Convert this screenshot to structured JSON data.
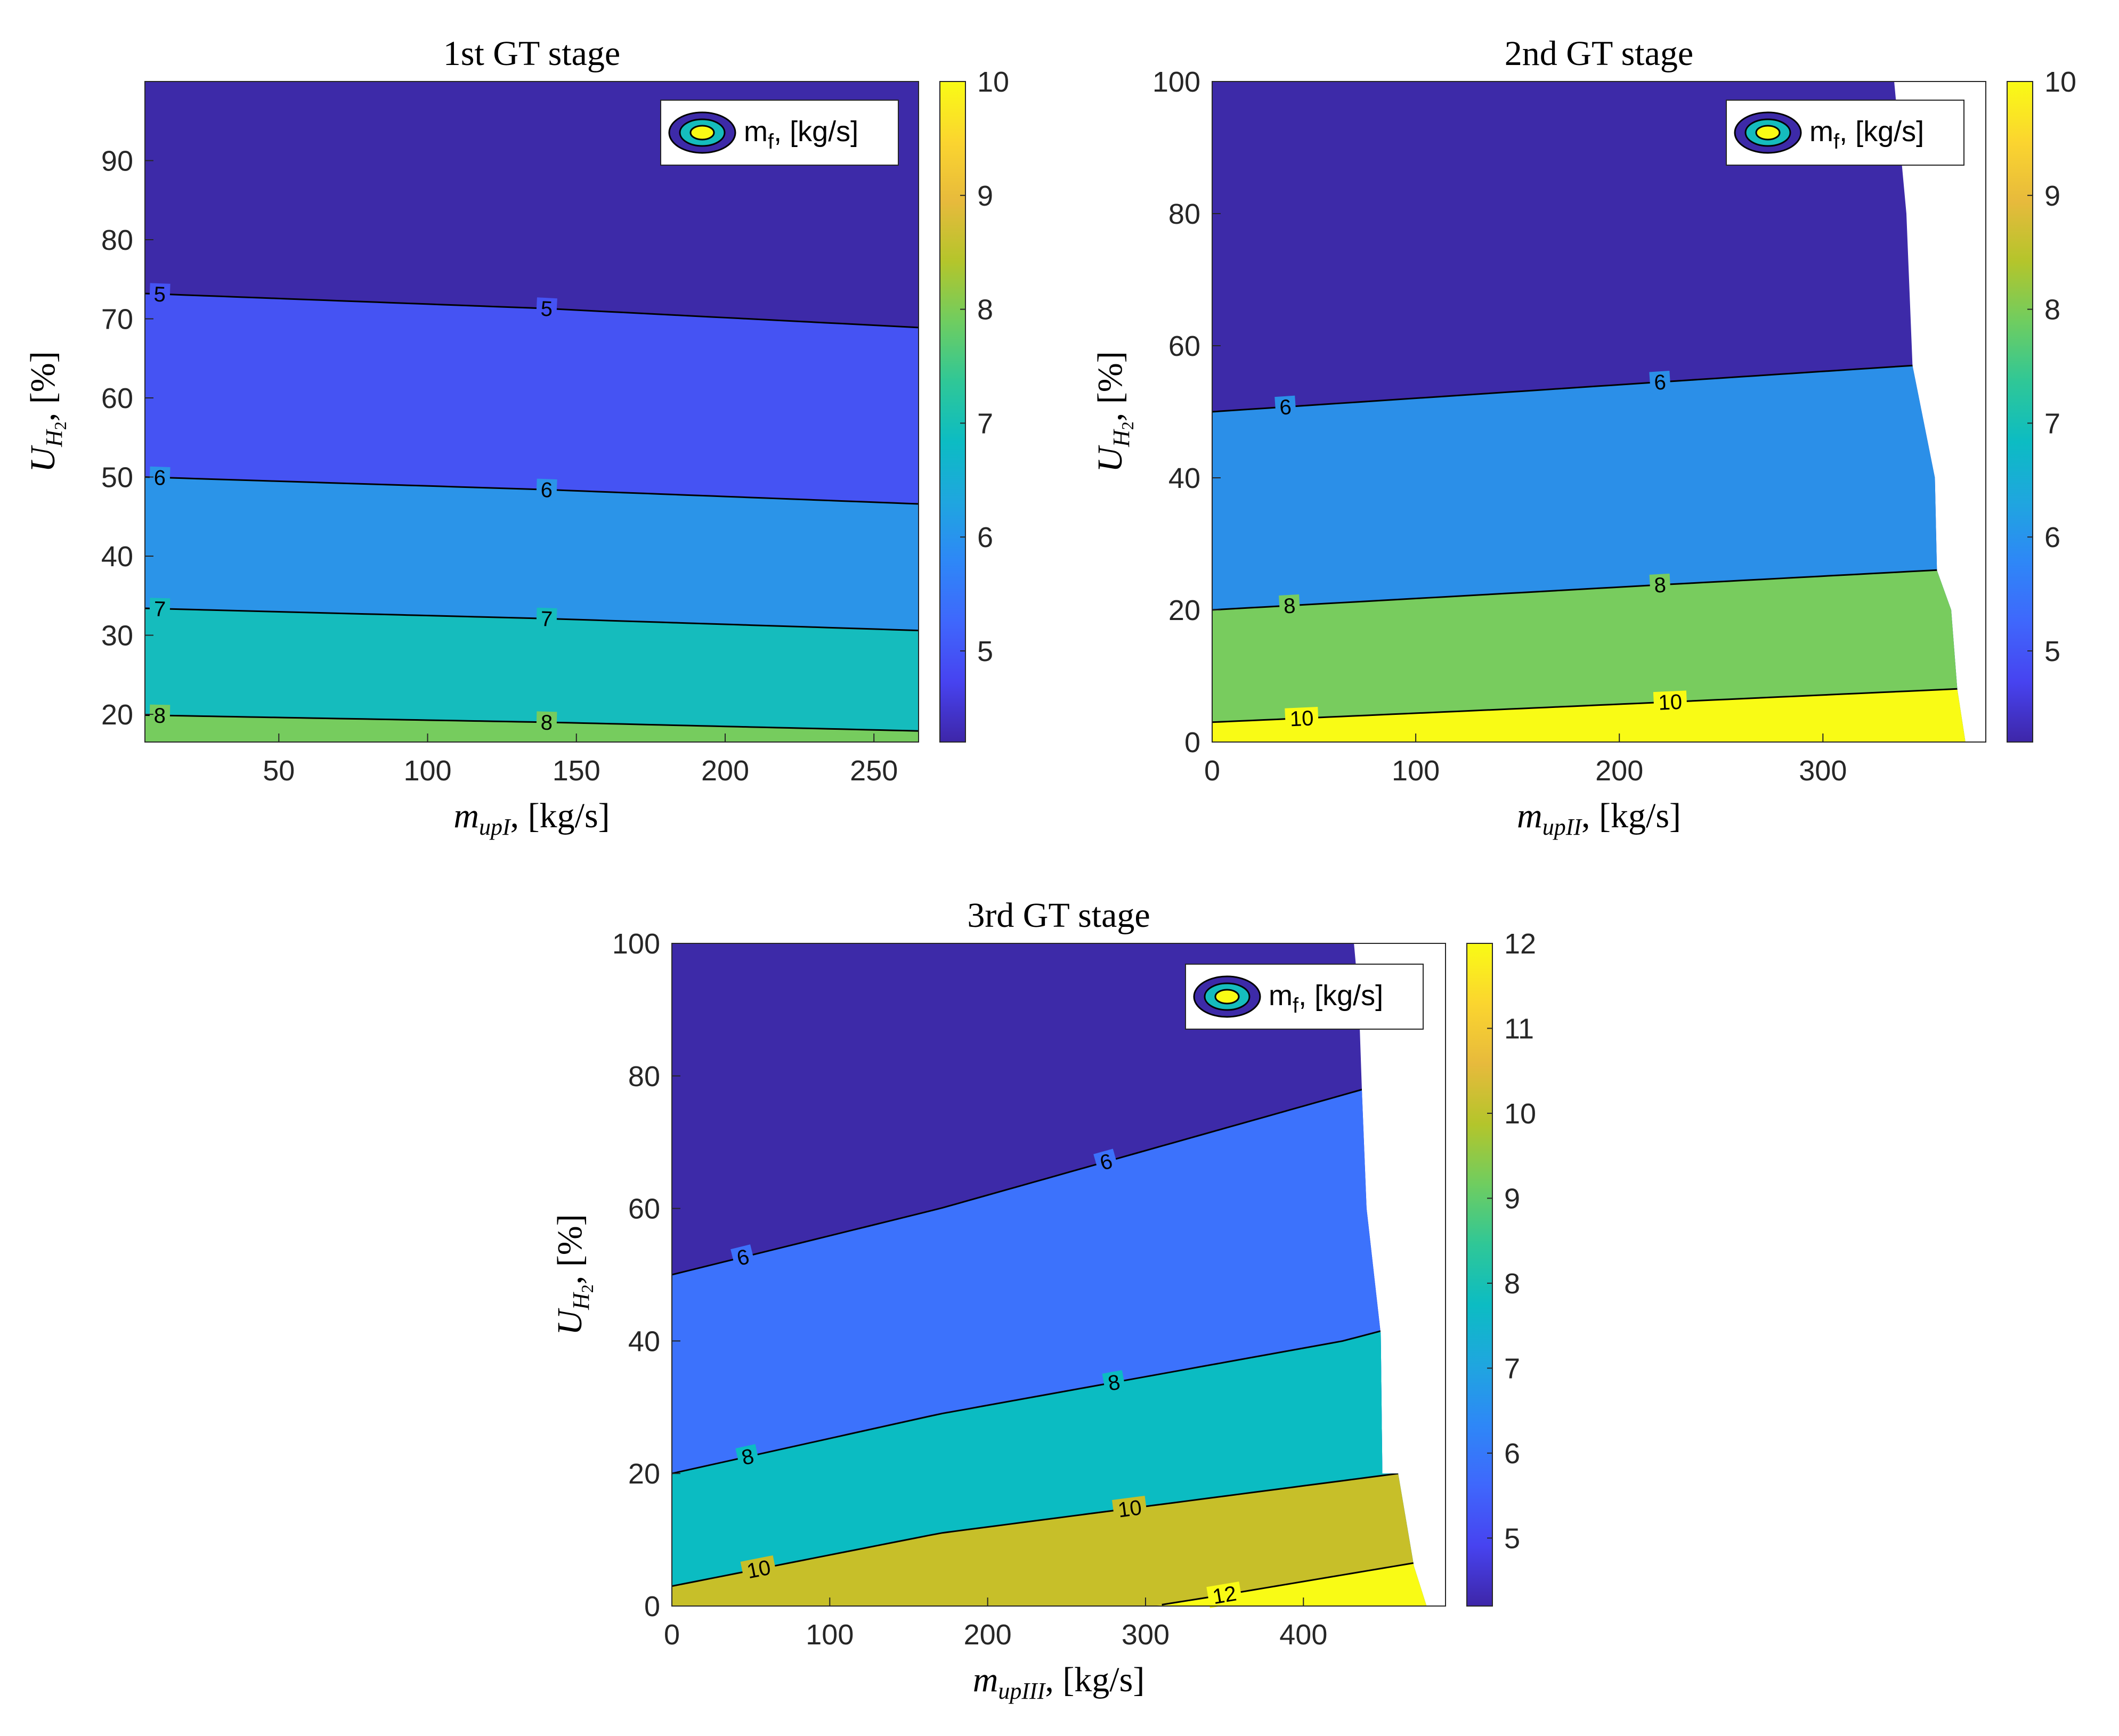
{
  "chart_data": [
    {
      "type": "contour",
      "title": "1st GT stage",
      "xlabel": "m_upI, [kg/s]",
      "xlabel_main": "m",
      "xlabel_sub": "upI",
      "xlabel_unit": ", [kg/s]",
      "ylabel_main": "U",
      "ylabel_sub": "H",
      "ylabel_subsub": "2",
      "ylabel_unit": ", [%]",
      "xlim": [
        5,
        265
      ],
      "ylim": [
        16.5,
        100
      ],
      "xticks": [
        50,
        100,
        150,
        200,
        250
      ],
      "yticks": [
        20,
        30,
        40,
        50,
        60,
        70,
        80,
        90
      ],
      "legend": "m_f, [kg/s]",
      "legend_main": "m",
      "legend_sub": "f",
      "legend_unit": ", [kg/s]",
      "colorbar": {
        "range": [
          4.2,
          10
        ],
        "ticks": [
          5,
          6,
          7,
          8,
          9,
          10
        ]
      },
      "x_extent": [
        [
          16.5,
          265
        ],
        [
          100,
          265
        ]
      ],
      "bands": [
        {
          "level": 4.5,
          "color": "#3d2aa8"
        },
        {
          "level": 5.4,
          "color": "#4553f3"
        },
        {
          "level": 6.3,
          "color": "#2b94e8"
        },
        {
          "level": 7.0,
          "color": "#15bcbd"
        },
        {
          "level": 8.0,
          "color": "#76cc5e"
        }
      ],
      "contours": [
        {
          "label": "5",
          "band": 1,
          "points": [
            [
              5,
              73.2
            ],
            [
              140,
              71.3
            ],
            [
              265,
              68.9
            ]
          ],
          "label_x": [
            10,
            140
          ]
        },
        {
          "label": "6",
          "band": 2,
          "points": [
            [
              5,
              50.0
            ],
            [
              140,
              48.4
            ],
            [
              265,
              46.6
            ]
          ],
          "label_x": [
            10,
            140
          ]
        },
        {
          "label": "7",
          "band": 3,
          "points": [
            [
              5,
              33.4
            ],
            [
              140,
              32.1
            ],
            [
              265,
              30.6
            ]
          ],
          "label_x": [
            10,
            140
          ]
        },
        {
          "label": "8",
          "band": 4,
          "points": [
            [
              5,
              19.9
            ],
            [
              140,
              19.0
            ],
            [
              265,
              17.9
            ]
          ],
          "label_x": [
            10,
            140
          ]
        }
      ]
    },
    {
      "type": "contour",
      "title": "2nd GT stage",
      "xlabel": "m_upII, [kg/s]",
      "xlabel_main": "m",
      "xlabel_sub": "upII",
      "xlabel_unit": ", [kg/s]",
      "ylabel_main": "U",
      "ylabel_sub": "H",
      "ylabel_subsub": "2",
      "ylabel_unit": ", [%]",
      "xlim": [
        0,
        380
      ],
      "ylim": [
        0,
        100
      ],
      "xticks": [
        0,
        100,
        200,
        300
      ],
      "yticks": [
        0,
        20,
        40,
        60,
        80,
        100
      ],
      "legend": "m_f, [kg/s]",
      "legend_main": "m",
      "legend_sub": "f",
      "legend_unit": ", [kg/s]",
      "colorbar": {
        "range": [
          4.2,
          10
        ],
        "ticks": [
          5,
          6,
          7,
          8,
          9,
          10
        ]
      },
      "x_extent": [
        [
          0,
          370
        ],
        [
          8,
          366
        ],
        [
          20,
          363
        ],
        [
          26,
          356
        ],
        [
          40,
          355
        ],
        [
          57,
          344
        ],
        [
          80,
          341
        ],
        [
          100,
          335
        ]
      ],
      "bands": [
        {
          "level": 4.5,
          "color": "#3d2aa8"
        },
        {
          "level": 6.3,
          "color": "#2b8fe8"
        },
        {
          "level": 7.8,
          "color": "#78cc5e"
        },
        {
          "level": 10.0,
          "color": "#f9fb15"
        }
      ],
      "contours": [
        {
          "label": "6",
          "band": 1,
          "points": [
            [
              0,
              50.0
            ],
            [
              220,
              54.5
            ],
            [
              344,
              57.0
            ]
          ],
          "label_x": [
            36,
            220
          ]
        },
        {
          "label": "8",
          "band": 2,
          "points": [
            [
              0,
              20.0
            ],
            [
              220,
              23.8
            ],
            [
              354,
              26.0
            ]
          ],
          "label_x": [
            38,
            220
          ]
        },
        {
          "label": "10",
          "band": 3,
          "points": [
            [
              0,
              3.0
            ],
            [
              220,
              6.0
            ],
            [
              363,
              8.0
            ]
          ],
          "label_x": [
            44,
            225
          ]
        }
      ]
    },
    {
      "type": "contour",
      "title": "3rd GT stage",
      "xlabel": "m_upIII, [kg/s]",
      "xlabel_main": "m",
      "xlabel_sub": "upIII",
      "xlabel_unit": ", [kg/s]",
      "ylabel_main": "U",
      "ylabel_sub": "H",
      "ylabel_subsub": "2",
      "ylabel_unit": ", [%]",
      "xlim": [
        0,
        490
      ],
      "ylim": [
        0,
        100
      ],
      "xticks": [
        0,
        100,
        200,
        300,
        400
      ],
      "yticks": [
        0,
        20,
        40,
        60,
        80,
        100
      ],
      "legend": "m_f, [kg/s]",
      "legend_main": "m",
      "legend_sub": "f",
      "legend_unit": ", [kg/s]",
      "colorbar": {
        "range": [
          4.2,
          12
        ],
        "ticks": [
          5,
          6,
          7,
          8,
          9,
          10,
          11,
          12
        ]
      },
      "x_extent": [
        [
          0,
          478
        ],
        [
          6,
          470
        ],
        [
          20,
          460
        ],
        [
          20,
          450
        ],
        [
          41,
          449
        ],
        [
          60,
          440
        ],
        [
          78,
          437
        ],
        [
          92,
          435
        ],
        [
          100,
          432
        ]
      ],
      "bands": [
        {
          "level": 4.5,
          "color": "#3d2aa8"
        },
        {
          "level": 6.5,
          "color": "#3c72fc"
        },
        {
          "level": 7.3,
          "color": "#0bbcc2"
        },
        {
          "level": 10.0,
          "color": "#c7bf29"
        },
        {
          "level": 12.0,
          "color": "#f9fb15"
        }
      ],
      "contours": [
        {
          "label": "6",
          "band": 1,
          "points": [
            [
              0,
              50.0
            ],
            [
              170,
              60.0
            ],
            [
              438,
              78.0
            ]
          ],
          "label_x": [
            45,
            275
          ]
        },
        {
          "label": "8",
          "band": 2,
          "points": [
            [
              0,
              20.0
            ],
            [
              170,
              29.0
            ],
            [
              425,
              40.0
            ],
            [
              449,
              41.5
            ]
          ],
          "label_x": [
            48,
            280
          ]
        },
        {
          "label": "10",
          "band": 3,
          "points": [
            [
              0,
              3.0
            ],
            [
              170,
              11.0
            ],
            [
              460,
              20.0
            ]
          ],
          "label_x": [
            55,
            290
          ]
        },
        {
          "label": "12",
          "band": 4,
          "points": [
            [
              305,
              0.0
            ],
            [
              350,
              1.7
            ],
            [
              470,
              6.5
            ]
          ],
          "label_x": [
            350
          ]
        }
      ]
    }
  ]
}
